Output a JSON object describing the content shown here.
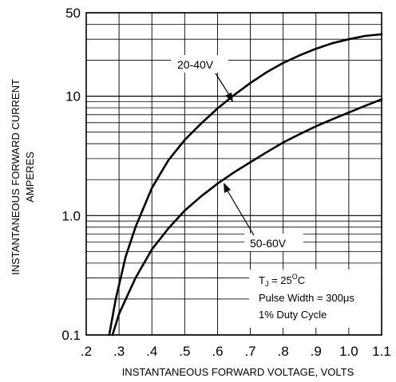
{
  "chart_data": {
    "type": "line",
    "title": "",
    "xlabel": "INSTANTANEOUS FORWARD VOLTAGE, VOLTS",
    "ylabel": [
      "INSTANTANEOUS FORWARD CURRENT",
      "AMPERES"
    ],
    "xlim": [
      0.2,
      1.1
    ],
    "ylim": [
      0.1,
      50
    ],
    "yscale": "log",
    "grid": true,
    "x_ticks": [
      0.2,
      0.3,
      0.4,
      0.5,
      0.6,
      0.7,
      0.8,
      0.9,
      1.0,
      1.1
    ],
    "x_tick_labels": [
      ".2",
      ".3",
      ".4",
      ".5",
      ".6",
      ".7",
      ".8",
      ".9",
      "1.0",
      "1.1"
    ],
    "y_ticks": [
      0.1,
      1.0,
      10,
      50
    ],
    "y_tick_labels": [
      "0.1",
      "1.0",
      "10",
      "50"
    ],
    "series": [
      {
        "name": "20-40V",
        "x": [
          0.27,
          0.29,
          0.32,
          0.35,
          0.4,
          0.45,
          0.5,
          0.55,
          0.6,
          0.65,
          0.7,
          0.75,
          0.8,
          0.85,
          0.9,
          0.95,
          1.0,
          1.05,
          1.1
        ],
        "y": [
          0.1,
          0.2,
          0.45,
          0.8,
          1.7,
          2.9,
          4.3,
          5.9,
          7.9,
          10.2,
          12.9,
          15.9,
          19.0,
          22.0,
          25.0,
          27.8,
          30.0,
          32.0,
          33.0
        ]
      },
      {
        "name": "50-60V",
        "x": [
          0.28,
          0.3,
          0.35,
          0.4,
          0.45,
          0.5,
          0.55,
          0.6,
          0.65,
          0.7,
          0.75,
          0.8,
          0.85,
          0.9,
          0.95,
          1.0,
          1.05,
          1.1
        ],
        "y": [
          0.1,
          0.15,
          0.3,
          0.52,
          0.78,
          1.1,
          1.45,
          1.85,
          2.3,
          2.8,
          3.4,
          4.1,
          4.8,
          5.6,
          6.4,
          7.3,
          8.3,
          9.4
        ]
      }
    ],
    "annotations": [
      {
        "text": "20-40V",
        "x": 0.65,
        "y": 10.0
      },
      {
        "text": "50-60V",
        "x": 0.61,
        "y": 2.1
      }
    ],
    "note": {
      "tj_prefix": "T",
      "tj_sub": "J",
      "tj_value": " = 25",
      "tj_sup": "O",
      "tj_unit": "C",
      "pulse": "Pulse Width = 300μs",
      "duty": "1% Duty Cycle"
    }
  }
}
